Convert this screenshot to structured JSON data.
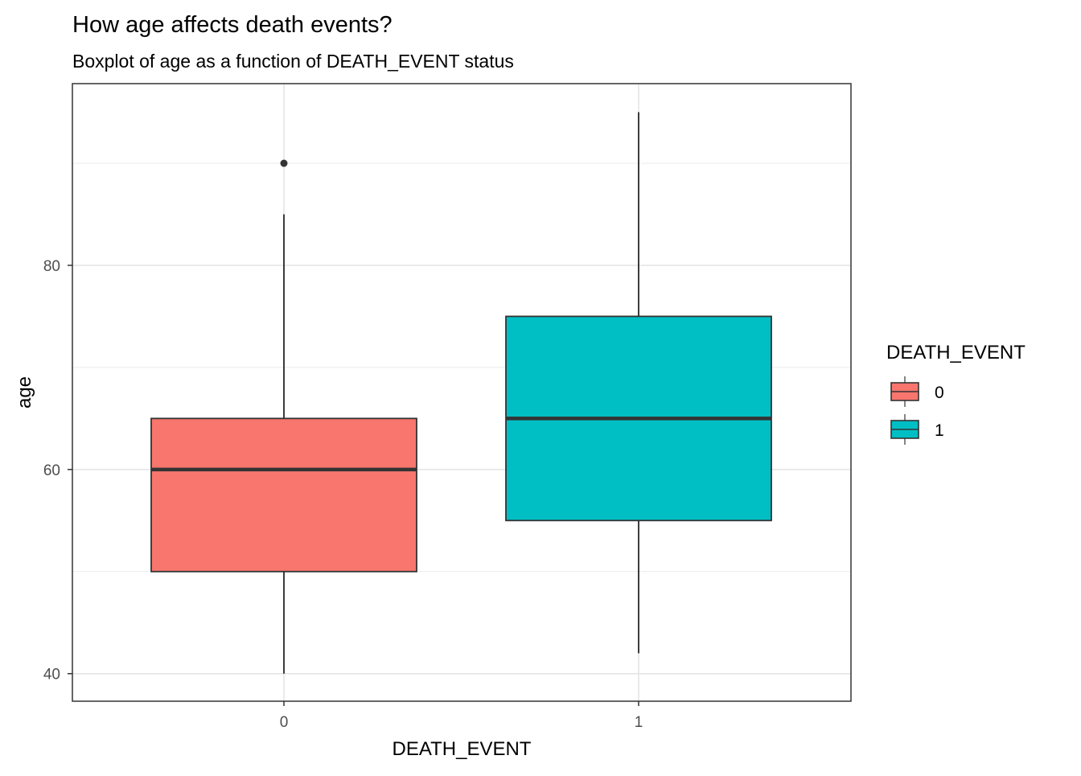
{
  "chart_data": {
    "type": "boxplot",
    "title": "How age affects death events?",
    "subtitle": "Boxplot of age as a function of DEATH_EVENT status",
    "xlabel": "DEATH_EVENT",
    "ylabel": "age",
    "categories": [
      "0",
      "1"
    ],
    "y_ticks": [
      "40",
      "60",
      "80"
    ],
    "y_tick_values": [
      40,
      60,
      80
    ],
    "ylim": [
      37.3,
      97.8
    ],
    "grid": true,
    "legend": {
      "title": "DEATH_EVENT",
      "placement": "right",
      "entries": [
        "0",
        "1"
      ]
    },
    "series": [
      {
        "category": "0",
        "color": "#F8766D",
        "lower_whisker": 40,
        "q1": 50,
        "median": 60,
        "q3": 65,
        "upper_whisker": 85,
        "outliers": [
          90
        ]
      },
      {
        "category": "1",
        "color": "#00BFC4",
        "lower_whisker": 42,
        "q1": 55,
        "median": 65,
        "q3": 75,
        "upper_whisker": 95,
        "outliers": []
      }
    ]
  }
}
